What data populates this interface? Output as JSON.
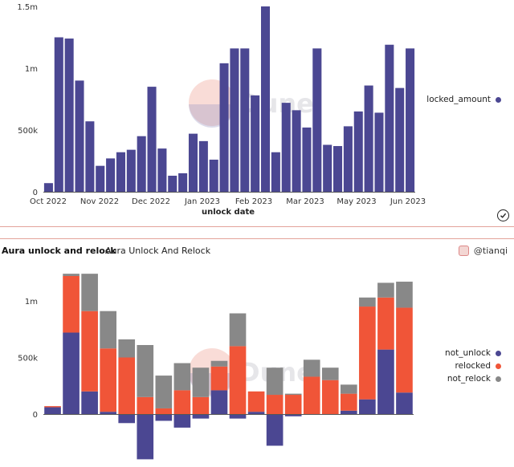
{
  "colors": {
    "bar_blue": "#4b4792",
    "relocked": "#f05538",
    "not_relock": "#888888",
    "not_unlock": "#4b4792"
  },
  "top_chart": {
    "legend": [
      "locked_amount"
    ],
    "xlabel": "unlock date",
    "xticks": [
      "Oct 2022",
      "Nov 2022",
      "Dec 2022",
      "Jan 2023",
      "Feb 2023",
      "Mar 2023",
      "May 2023",
      "Jun 2023"
    ],
    "yticks": [
      "0",
      "500k",
      "1m",
      "1.5m"
    ]
  },
  "bottom_chart": {
    "title": "Aura unlock and relock",
    "subtitle": "Aura Unlock And Relock",
    "user": "@tianqi",
    "yticks": [
      "0",
      "500k",
      "1m"
    ],
    "legend": [
      "not_unlock",
      "relocked",
      "not_relock"
    ]
  },
  "watermark": "Dune",
  "chart_data": [
    {
      "type": "bar",
      "title": "",
      "xlabel": "unlock date",
      "ylabel": "",
      "ylim": [
        0,
        1500000
      ],
      "grid": false,
      "legend_position": "right",
      "series": [
        {
          "name": "locked_amount",
          "values": [
            70000,
            1250000,
            1240000,
            900000,
            570000,
            210000,
            270000,
            320000,
            340000,
            450000,
            850000,
            350000,
            130000,
            150000,
            470000,
            410000,
            260000,
            1040000,
            1160000,
            1160000,
            780000,
            1500000,
            320000,
            720000,
            660000,
            520000,
            1160000,
            380000,
            370000,
            530000,
            650000,
            860000,
            640000,
            1190000,
            840000,
            1160000
          ]
        }
      ]
    },
    {
      "type": "bar",
      "title": "Aura unlock and relock",
      "ylim": [
        -400000,
        1250000
      ],
      "stacked": true,
      "grid": false,
      "legend_position": "right",
      "series": [
        {
          "name": "not_unlock",
          "values": [
            60000,
            720000,
            200000,
            20000,
            -80000,
            -400000,
            -60000,
            -120000,
            -40000,
            210000,
            -40000,
            20000,
            -280000,
            -20000,
            0,
            0,
            30000,
            130000,
            570000,
            190000
          ]
        },
        {
          "name": "relocked",
          "values": [
            10000,
            500000,
            710000,
            560000,
            500000,
            150000,
            50000,
            210000,
            150000,
            210000,
            600000,
            180000,
            170000,
            170000,
            330000,
            300000,
            150000,
            820000,
            460000,
            750000
          ]
        },
        {
          "name": "not_relock",
          "values": [
            0,
            20000,
            330000,
            330000,
            160000,
            460000,
            290000,
            240000,
            260000,
            50000,
            290000,
            0,
            240000,
            10000,
            150000,
            110000,
            80000,
            80000,
            130000,
            230000
          ]
        }
      ]
    }
  ]
}
